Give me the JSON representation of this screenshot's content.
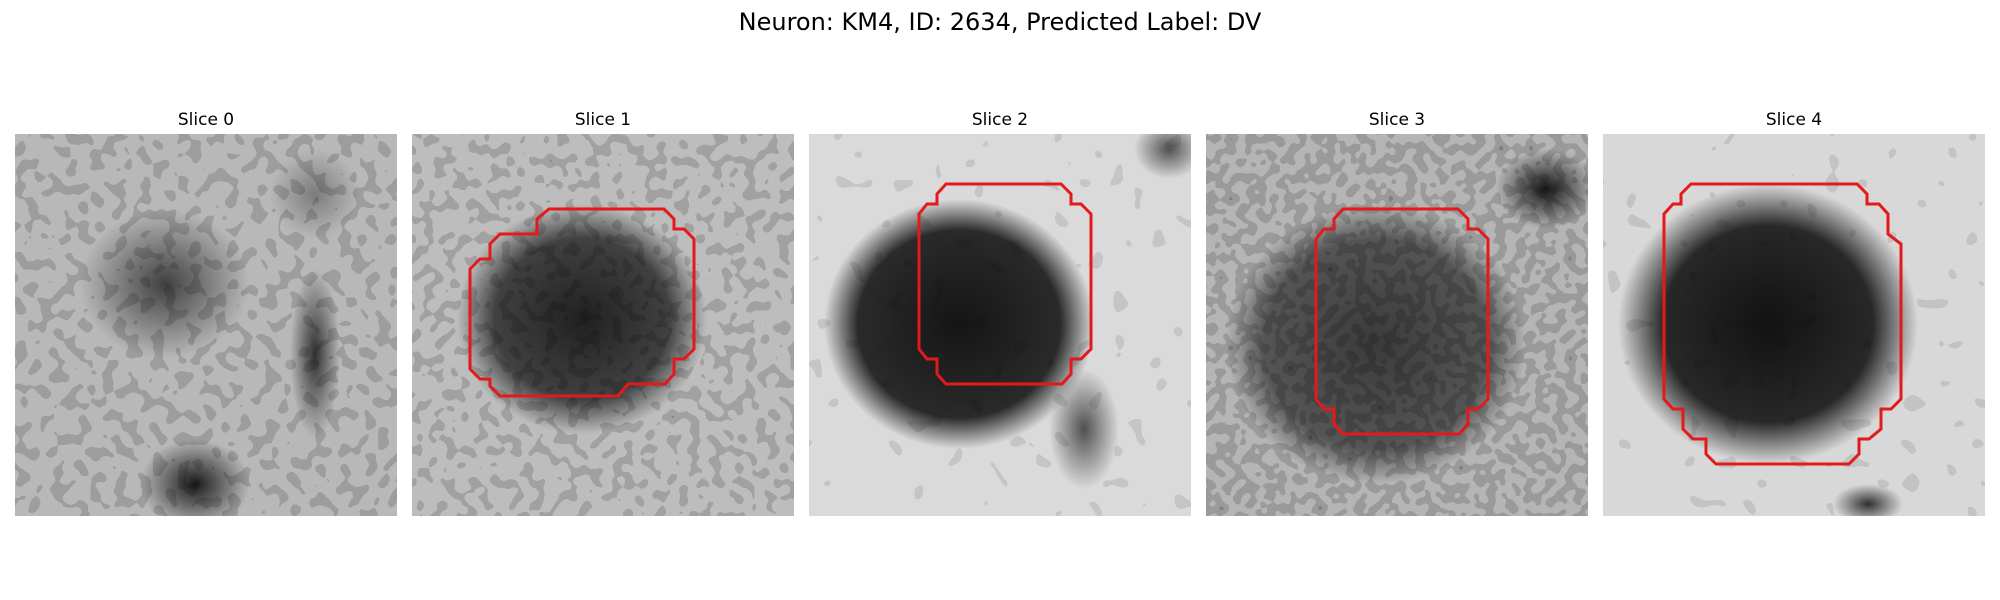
{
  "figure": {
    "title": "Neuron: KM4, ID: 2634, Predicted Label: DV",
    "contour_color": "#e31a1c",
    "colormap": "grayscale",
    "panels": [
      {
        "title": "Slice 0",
        "has_contour": false
      },
      {
        "title": "Slice 1",
        "has_contour": true
      },
      {
        "title": "Slice 2",
        "has_contour": true
      },
      {
        "title": "Slice 3",
        "has_contour": true
      },
      {
        "title": "Slice 4",
        "has_contour": true
      }
    ]
  }
}
